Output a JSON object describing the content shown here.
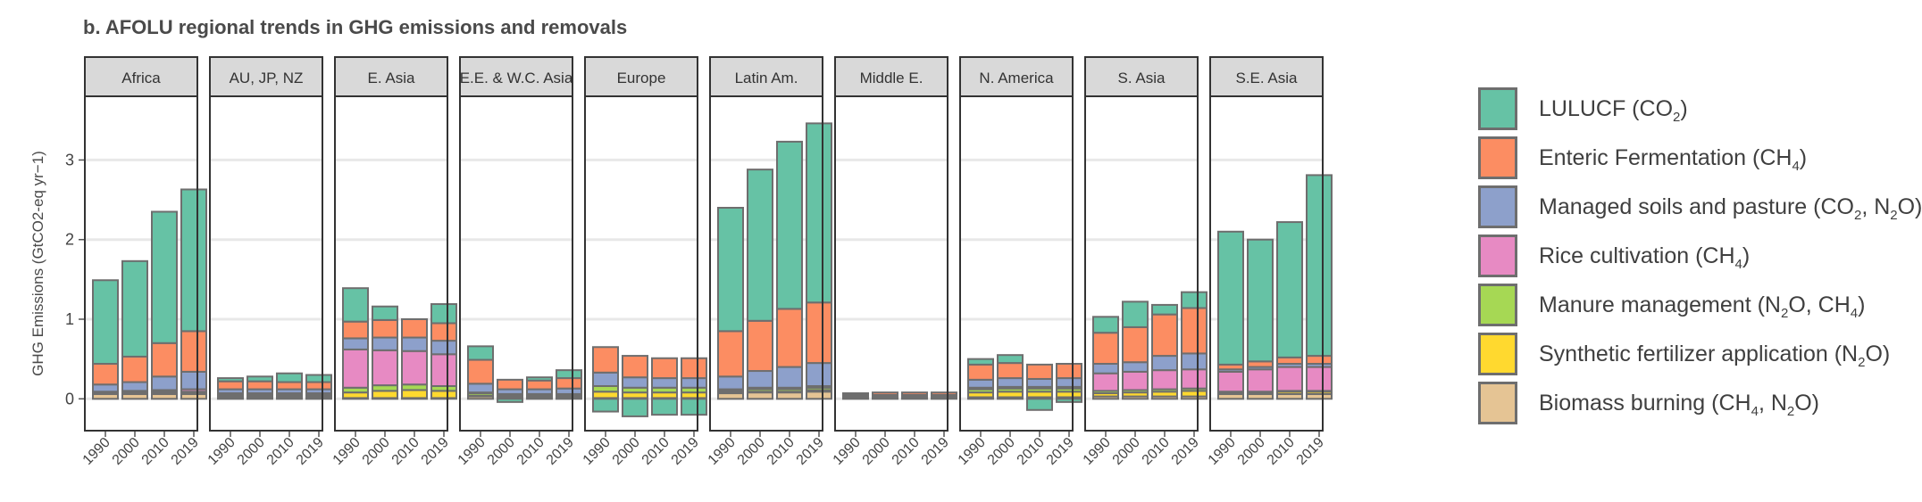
{
  "title": "b. AFOLU regional trends in GHG emissions and removals",
  "chart_data": {
    "type": "bar",
    "stacked": true,
    "faceted": true,
    "title": "b. AFOLU regional trends in GHG emissions and removals",
    "ylabel": "GHG Emissions (GtCO2-eq yr−1)",
    "ylim": [
      -0.4,
      3.8
    ],
    "yticks": [
      0,
      1,
      2,
      3
    ],
    "grid": true,
    "legend_position": "right",
    "categories": [
      "1990",
      "2000",
      "2010",
      "2019"
    ],
    "stack_order": [
      "biomass",
      "synthetic",
      "manure",
      "rice",
      "soils",
      "enteric",
      "lulucf"
    ],
    "series": [
      {
        "key": "lulucf",
        "name": "LULUCF (CO2)",
        "color": "#66c2a5"
      },
      {
        "key": "enteric",
        "name": "Enteric Fermentation (CH4)",
        "color": "#fc8d62"
      },
      {
        "key": "soils",
        "name": "Managed soils and pasture (CO2, N2O)",
        "color": "#8da0cb"
      },
      {
        "key": "rice",
        "name": "Rice cultivation (CH4)",
        "color": "#e78ac3"
      },
      {
        "key": "manure",
        "name": "Manure management (N2O, CH4)",
        "color": "#a6d854"
      },
      {
        "key": "synthetic",
        "name": "Synthetic fertilizer application (N2O)",
        "color": "#ffd92f"
      },
      {
        "key": "biomass",
        "name": "Biomass burning (CH4, N2O)",
        "color": "#e5c494"
      }
    ],
    "panels": [
      {
        "name": "Africa",
        "values": {
          "biomass": [
            0.06,
            0.06,
            0.06,
            0.06
          ],
          "synthetic": [
            0.0,
            0.0,
            0.01,
            0.01
          ],
          "manure": [
            0.02,
            0.02,
            0.02,
            0.02
          ],
          "rice": [
            0.01,
            0.02,
            0.02,
            0.03
          ],
          "soils": [
            0.09,
            0.11,
            0.17,
            0.22
          ],
          "enteric": [
            0.26,
            0.32,
            0.42,
            0.51
          ],
          "lulucf": [
            1.05,
            1.2,
            1.65,
            1.78
          ]
        }
      },
      {
        "name": "AU, JP, NZ",
        "values": {
          "biomass": [
            0.02,
            0.02,
            0.02,
            0.02
          ],
          "synthetic": [
            0.01,
            0.01,
            0.01,
            0.01
          ],
          "manure": [
            0.02,
            0.02,
            0.02,
            0.02
          ],
          "rice": [
            0.02,
            0.02,
            0.02,
            0.02
          ],
          "soils": [
            0.05,
            0.05,
            0.05,
            0.05
          ],
          "enteric": [
            0.1,
            0.1,
            0.09,
            0.09
          ],
          "lulucf": [
            0.04,
            0.06,
            0.11,
            0.09
          ]
        }
      },
      {
        "name": "E. Asia",
        "values": {
          "biomass": [
            0.01,
            0.01,
            0.01,
            0.01
          ],
          "synthetic": [
            0.07,
            0.09,
            0.1,
            0.09
          ],
          "manure": [
            0.06,
            0.07,
            0.07,
            0.06
          ],
          "rice": [
            0.48,
            0.44,
            0.42,
            0.4
          ],
          "soils": [
            0.14,
            0.16,
            0.17,
            0.17
          ],
          "enteric": [
            0.21,
            0.22,
            0.23,
            0.22
          ],
          "lulucf": [
            0.42,
            0.17,
            0.0,
            0.24
          ]
        }
      },
      {
        "name": "E.E. & W.C. Asia",
        "values": {
          "biomass": [
            0.03,
            0.02,
            0.02,
            0.02
          ],
          "synthetic": [
            0.01,
            0.01,
            0.01,
            0.01
          ],
          "manure": [
            0.03,
            0.02,
            0.02,
            0.02
          ],
          "rice": [
            0.01,
            0.01,
            0.01,
            0.01
          ],
          "soils": [
            0.11,
            0.06,
            0.06,
            0.07
          ],
          "enteric": [
            0.3,
            0.12,
            0.11,
            0.13
          ],
          "lulucf": [
            0.17,
            -0.04,
            0.04,
            0.1
          ]
        }
      },
      {
        "name": "Europe",
        "values": {
          "biomass": [
            0.01,
            0.01,
            0.01,
            0.01
          ],
          "synthetic": [
            0.08,
            0.07,
            0.07,
            0.07
          ],
          "manure": [
            0.07,
            0.06,
            0.06,
            0.06
          ],
          "rice": [
            0.0,
            0.0,
            0.0,
            0.0
          ],
          "soils": [
            0.17,
            0.13,
            0.12,
            0.12
          ],
          "enteric": [
            0.32,
            0.27,
            0.25,
            0.25
          ],
          "lulucf": [
            -0.16,
            -0.22,
            -0.2,
            -0.2
          ]
        }
      },
      {
        "name": "Latin Am.",
        "values": {
          "biomass": [
            0.07,
            0.08,
            0.08,
            0.09
          ],
          "synthetic": [
            0.01,
            0.01,
            0.01,
            0.02
          ],
          "manure": [
            0.02,
            0.03,
            0.03,
            0.03
          ],
          "rice": [
            0.02,
            0.02,
            0.02,
            0.02
          ],
          "soils": [
            0.16,
            0.21,
            0.26,
            0.29
          ],
          "enteric": [
            0.57,
            0.63,
            0.73,
            0.76
          ],
          "lulucf": [
            1.55,
            1.9,
            2.1,
            2.25
          ]
        }
      },
      {
        "name": "Middle E.",
        "values": {
          "biomass": [
            0.01,
            0.01,
            0.01,
            0.01
          ],
          "synthetic": [
            0.0,
            0.0,
            0.0,
            0.0
          ],
          "manure": [
            0.01,
            0.01,
            0.01,
            0.01
          ],
          "rice": [
            0.01,
            0.01,
            0.01,
            0.01
          ],
          "soils": [
            0.02,
            0.02,
            0.02,
            0.02
          ],
          "enteric": [
            0.02,
            0.03,
            0.03,
            0.03
          ],
          "lulucf": [
            0.0,
            0.0,
            0.0,
            0.0
          ]
        }
      },
      {
        "name": "N. America",
        "values": {
          "biomass": [
            0.02,
            0.02,
            0.02,
            0.02
          ],
          "synthetic": [
            0.06,
            0.07,
            0.07,
            0.07
          ],
          "manure": [
            0.04,
            0.04,
            0.04,
            0.04
          ],
          "rice": [
            0.02,
            0.02,
            0.02,
            0.02
          ],
          "soils": [
            0.1,
            0.11,
            0.1,
            0.11
          ],
          "enteric": [
            0.19,
            0.19,
            0.18,
            0.18
          ],
          "lulucf": [
            0.07,
            0.1,
            -0.14,
            -0.04
          ]
        }
      },
      {
        "name": "S. Asia",
        "values": {
          "biomass": [
            0.03,
            0.03,
            0.03,
            0.03
          ],
          "synthetic": [
            0.04,
            0.05,
            0.06,
            0.07
          ],
          "manure": [
            0.03,
            0.03,
            0.03,
            0.03
          ],
          "rice": [
            0.22,
            0.23,
            0.24,
            0.24
          ],
          "soils": [
            0.12,
            0.12,
            0.18,
            0.2
          ],
          "enteric": [
            0.39,
            0.44,
            0.52,
            0.57
          ],
          "lulucf": [
            0.2,
            0.32,
            0.12,
            0.2
          ]
        }
      },
      {
        "name": "S.E. Asia",
        "values": {
          "biomass": [
            0.06,
            0.06,
            0.06,
            0.06
          ],
          "synthetic": [
            0.02,
            0.02,
            0.03,
            0.03
          ],
          "manure": [
            0.01,
            0.01,
            0.01,
            0.01
          ],
          "rice": [
            0.25,
            0.28,
            0.3,
            0.3
          ],
          "soils": [
            0.03,
            0.03,
            0.04,
            0.04
          ],
          "enteric": [
            0.06,
            0.07,
            0.08,
            0.1
          ],
          "lulucf": [
            1.67,
            1.53,
            1.7,
            2.27
          ]
        }
      }
    ]
  }
}
